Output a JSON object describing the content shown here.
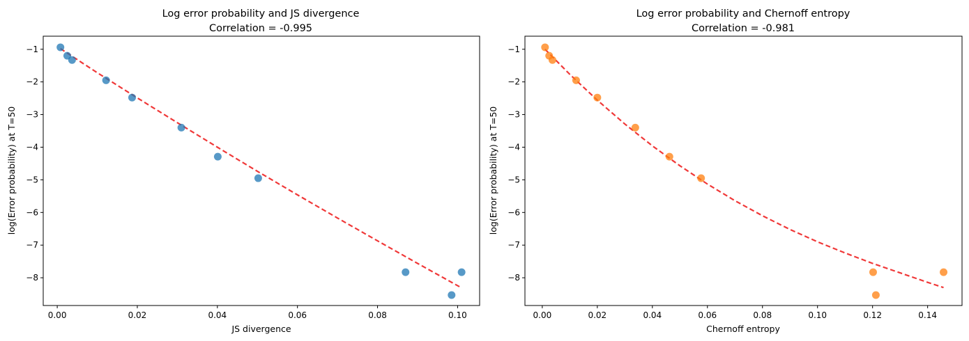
{
  "chart_data": [
    {
      "type": "scatter",
      "title": "Log error probability and JS divergence",
      "subtitle": "Correlation = -0.995",
      "xlabel": "JS divergence",
      "ylabel": "log(Error probability) at T=50",
      "xlim": [
        -0.0035,
        0.1055
      ],
      "ylim": [
        -8.85,
        -0.6
      ],
      "xticks": [
        0.0,
        0.02,
        0.04,
        0.06,
        0.08,
        0.1
      ],
      "xtick_labels": [
        "0.00",
        "0.02",
        "0.04",
        "0.06",
        "0.08",
        "0.10"
      ],
      "yticks": [
        -1,
        -2,
        -3,
        -4,
        -5,
        -6,
        -7,
        -8
      ],
      "ytick_labels": [
        "−1",
        "−2",
        "−3",
        "−4",
        "−5",
        "−6",
        "−7",
        "−8"
      ],
      "grid": false,
      "series": [
        {
          "marker": "circle",
          "color": "#1f77b4",
          "x": [
            0.0008,
            0.0025,
            0.0037,
            0.0122,
            0.0187,
            0.031,
            0.0401,
            0.0502,
            0.087,
            0.0985,
            0.101
          ],
          "y": [
            -0.94,
            -1.2,
            -1.33,
            -1.95,
            -2.48,
            -3.4,
            -4.29,
            -4.95,
            -7.83,
            -8.53,
            -7.83
          ]
        },
        {
          "type": "line",
          "style": "dashed",
          "color": "#ee2222",
          "x": [
            0.0008,
            0.01,
            0.02,
            0.03,
            0.04,
            0.05,
            0.06,
            0.07,
            0.08,
            0.09,
            0.101
          ],
          "y": [
            -0.98,
            -1.72,
            -2.49,
            -3.25,
            -4.0,
            -4.74,
            -5.46,
            -6.17,
            -6.87,
            -7.56,
            -8.31
          ]
        }
      ]
    },
    {
      "type": "scatter",
      "title": "Log error probability and Chernoff entropy",
      "subtitle": "Correlation = -0.981",
      "xlabel": "Chernoff entropy",
      "ylabel": "log(Error probability) at T=50",
      "xlim": [
        -0.0063,
        0.1525
      ],
      "ylim": [
        -8.85,
        -0.6
      ],
      "xticks": [
        0.0,
        0.02,
        0.04,
        0.06,
        0.08,
        0.1,
        0.12,
        0.14
      ],
      "xtick_labels": [
        "0.00",
        "0.02",
        "0.04",
        "0.06",
        "0.08",
        "0.10",
        "0.12",
        "0.14"
      ],
      "yticks": [
        -1,
        -2,
        -3,
        -4,
        -5,
        -6,
        -7,
        -8
      ],
      "ytick_labels": [
        "−1",
        "−2",
        "−3",
        "−4",
        "−5",
        "−6",
        "−7",
        "−8"
      ],
      "grid": false,
      "series": [
        {
          "marker": "circle",
          "color": "#ff7f0e",
          "x": [
            0.001,
            0.0025,
            0.0037,
            0.0123,
            0.02,
            0.0338,
            0.0462,
            0.0577,
            0.1202,
            0.1212,
            0.1458
          ],
          "y": [
            -0.94,
            -1.2,
            -1.33,
            -1.95,
            -2.48,
            -3.4,
            -4.29,
            -4.95,
            -7.83,
            -8.53,
            -7.83
          ]
        },
        {
          "type": "line",
          "style": "dashed",
          "color": "#ee2222",
          "x": [
            0.001,
            0.01,
            0.02,
            0.03,
            0.04,
            0.05,
            0.06,
            0.07,
            0.08,
            0.09,
            0.1,
            0.11,
            0.12,
            0.13,
            0.14,
            0.1458
          ],
          "y": [
            -1.0,
            -1.77,
            -2.56,
            -3.29,
            -3.96,
            -4.57,
            -5.13,
            -5.64,
            -6.1,
            -6.52,
            -6.9,
            -7.24,
            -7.56,
            -7.85,
            -8.14,
            -8.3
          ]
        }
      ]
    }
  ]
}
